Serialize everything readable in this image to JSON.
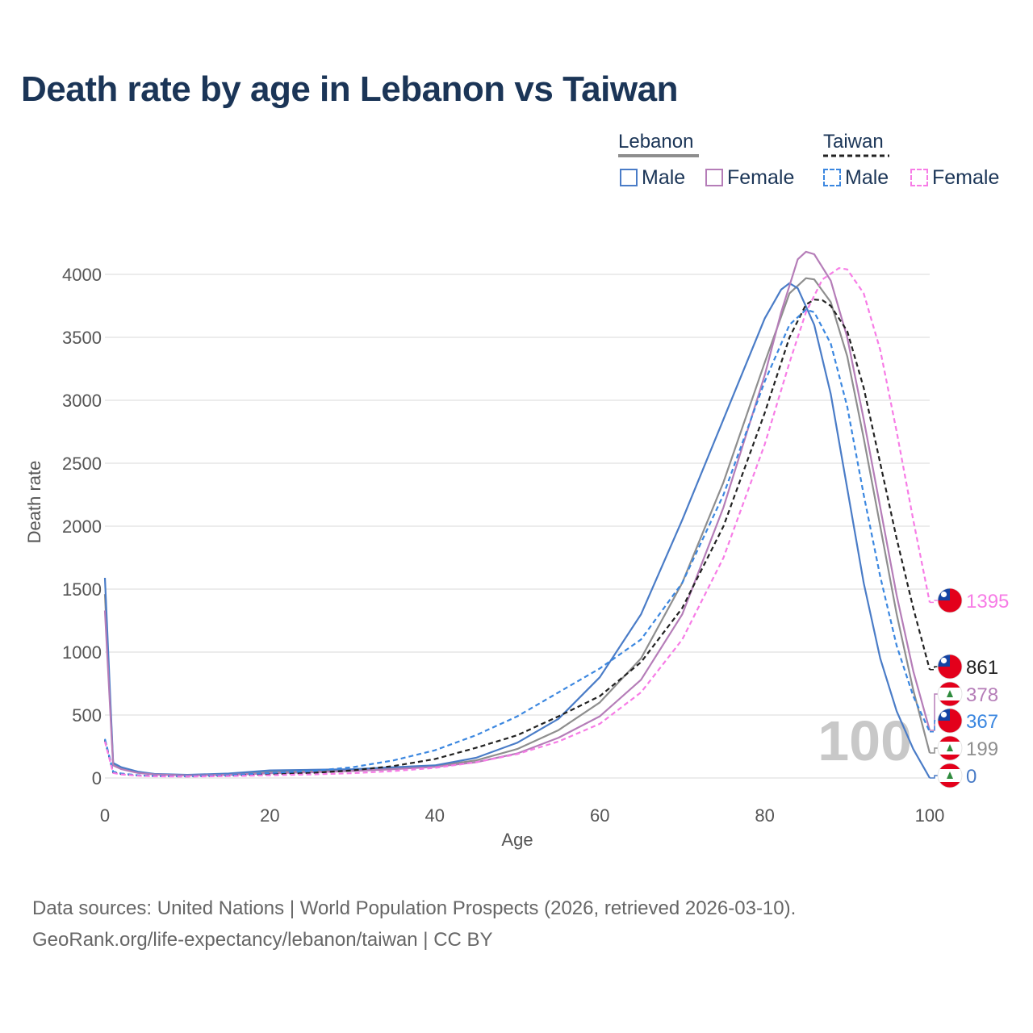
{
  "title": "Death rate by age in Lebanon vs Taiwan",
  "legend": {
    "groups": [
      {
        "label": "Lebanon",
        "line_color": "#8e8e8e",
        "dash": false,
        "items": [
          {
            "label": "Male",
            "color": "#4a7cc7"
          },
          {
            "label": "Female",
            "color": "#b57db8"
          }
        ]
      },
      {
        "label": "Taiwan",
        "line_color": "#222222",
        "dash": true,
        "items": [
          {
            "label": "Male",
            "color": "#3b87e0"
          },
          {
            "label": "Female",
            "color": "#f77ce6"
          }
        ]
      }
    ]
  },
  "chart_data": {
    "type": "line",
    "xlabel": "Age",
    "ylabel": "Death rate",
    "xlim": [
      0,
      100
    ],
    "ylim": [
      0,
      4000
    ],
    "x_ticks": [
      0,
      20,
      40,
      60,
      80,
      100
    ],
    "y_ticks": [
      0,
      500,
      1000,
      1500,
      2000,
      2500,
      3000,
      3500,
      4000
    ],
    "watermark": "100",
    "series": [
      {
        "id": "lb-total",
        "name": "Lebanon",
        "color": "#8e8e8e",
        "dash": false,
        "end_label": "199",
        "flag": "lebanon",
        "points": [
          [
            0,
            1460
          ],
          [
            1,
            110
          ],
          [
            2,
            80
          ],
          [
            4,
            45
          ],
          [
            6,
            30
          ],
          [
            10,
            22
          ],
          [
            15,
            30
          ],
          [
            20,
            48
          ],
          [
            25,
            55
          ],
          [
            30,
            65
          ],
          [
            35,
            78
          ],
          [
            40,
            95
          ],
          [
            45,
            140
          ],
          [
            50,
            230
          ],
          [
            55,
            380
          ],
          [
            60,
            600
          ],
          [
            65,
            950
          ],
          [
            70,
            1550
          ],
          [
            75,
            2350
          ],
          [
            80,
            3300
          ],
          [
            83,
            3850
          ],
          [
            85,
            3970
          ],
          [
            86,
            3960
          ],
          [
            88,
            3780
          ],
          [
            90,
            3350
          ],
          [
            92,
            2700
          ],
          [
            94,
            2000
          ],
          [
            96,
            1300
          ],
          [
            98,
            700
          ],
          [
            100,
            199
          ]
        ]
      },
      {
        "id": "lb-male",
        "name": "Lebanon Male",
        "color": "#4a7cc7",
        "dash": false,
        "end_label": "0",
        "flag": "lebanon",
        "points": [
          [
            0,
            1590
          ],
          [
            1,
            120
          ],
          [
            2,
            85
          ],
          [
            4,
            50
          ],
          [
            6,
            32
          ],
          [
            10,
            25
          ],
          [
            15,
            35
          ],
          [
            20,
            60
          ],
          [
            25,
            65
          ],
          [
            30,
            70
          ],
          [
            35,
            85
          ],
          [
            40,
            100
          ],
          [
            45,
            160
          ],
          [
            50,
            280
          ],
          [
            55,
            470
          ],
          [
            60,
            800
          ],
          [
            65,
            1300
          ],
          [
            70,
            2050
          ],
          [
            75,
            2850
          ],
          [
            80,
            3650
          ],
          [
            82,
            3880
          ],
          [
            83,
            3930
          ],
          [
            84,
            3890
          ],
          [
            86,
            3600
          ],
          [
            88,
            3050
          ],
          [
            90,
            2300
          ],
          [
            92,
            1550
          ],
          [
            94,
            950
          ],
          [
            96,
            530
          ],
          [
            98,
            230
          ],
          [
            100,
            0
          ]
        ]
      },
      {
        "id": "lb-female",
        "name": "Lebanon Female",
        "color": "#b57db8",
        "dash": false,
        "end_label": "378",
        "flag": "lebanon",
        "points": [
          [
            0,
            1330
          ],
          [
            1,
            100
          ],
          [
            2,
            70
          ],
          [
            4,
            40
          ],
          [
            6,
            28
          ],
          [
            10,
            20
          ],
          [
            15,
            25
          ],
          [
            20,
            38
          ],
          [
            25,
            45
          ],
          [
            30,
            55
          ],
          [
            35,
            70
          ],
          [
            40,
            88
          ],
          [
            45,
            125
          ],
          [
            50,
            195
          ],
          [
            55,
            320
          ],
          [
            60,
            490
          ],
          [
            65,
            780
          ],
          [
            70,
            1300
          ],
          [
            75,
            2150
          ],
          [
            80,
            3200
          ],
          [
            82,
            3700
          ],
          [
            84,
            4120
          ],
          [
            85,
            4180
          ],
          [
            86,
            4160
          ],
          [
            88,
            3950
          ],
          [
            90,
            3500
          ],
          [
            92,
            2850
          ],
          [
            94,
            2150
          ],
          [
            96,
            1450
          ],
          [
            98,
            850
          ],
          [
            100,
            378
          ]
        ]
      },
      {
        "id": "tw-total",
        "name": "Taiwan",
        "color": "#222222",
        "dash": true,
        "end_label": "861",
        "flag": "taiwan",
        "points": [
          [
            0,
            300
          ],
          [
            1,
            45
          ],
          [
            2,
            30
          ],
          [
            4,
            20
          ],
          [
            6,
            15
          ],
          [
            10,
            12
          ],
          [
            15,
            18
          ],
          [
            20,
            30
          ],
          [
            25,
            40
          ],
          [
            30,
            60
          ],
          [
            35,
            95
          ],
          [
            40,
            150
          ],
          [
            45,
            240
          ],
          [
            50,
            340
          ],
          [
            55,
            490
          ],
          [
            60,
            650
          ],
          [
            65,
            920
          ],
          [
            70,
            1350
          ],
          [
            75,
            2000
          ],
          [
            80,
            2900
          ],
          [
            83,
            3500
          ],
          [
            85,
            3760
          ],
          [
            86,
            3800
          ],
          [
            87,
            3795
          ],
          [
            88,
            3750
          ],
          [
            90,
            3550
          ],
          [
            92,
            3100
          ],
          [
            94,
            2500
          ],
          [
            96,
            1900
          ],
          [
            98,
            1350
          ],
          [
            100,
            861
          ]
        ]
      },
      {
        "id": "tw-male",
        "name": "Taiwan Male",
        "color": "#3b87e0",
        "dash": true,
        "end_label": "367",
        "flag": "taiwan",
        "points": [
          [
            0,
            310
          ],
          [
            1,
            50
          ],
          [
            2,
            35
          ],
          [
            4,
            22
          ],
          [
            6,
            16
          ],
          [
            10,
            14
          ],
          [
            15,
            22
          ],
          [
            20,
            40
          ],
          [
            25,
            55
          ],
          [
            30,
            85
          ],
          [
            35,
            140
          ],
          [
            40,
            220
          ],
          [
            45,
            340
          ],
          [
            50,
            490
          ],
          [
            55,
            680
          ],
          [
            60,
            870
          ],
          [
            65,
            1100
          ],
          [
            70,
            1550
          ],
          [
            75,
            2250
          ],
          [
            80,
            3150
          ],
          [
            83,
            3600
          ],
          [
            85,
            3720
          ],
          [
            86,
            3700
          ],
          [
            88,
            3450
          ],
          [
            90,
            2950
          ],
          [
            92,
            2250
          ],
          [
            94,
            1600
          ],
          [
            96,
            1050
          ],
          [
            98,
            650
          ],
          [
            100,
            367
          ]
        ]
      },
      {
        "id": "tw-female",
        "name": "Taiwan Female",
        "color": "#f77ce6",
        "dash": true,
        "end_label": "1395",
        "flag": "taiwan",
        "points": [
          [
            0,
            290
          ],
          [
            1,
            40
          ],
          [
            2,
            28
          ],
          [
            4,
            18
          ],
          [
            6,
            13
          ],
          [
            10,
            11
          ],
          [
            15,
            15
          ],
          [
            20,
            22
          ],
          [
            25,
            28
          ],
          [
            30,
            38
          ],
          [
            35,
            55
          ],
          [
            40,
            80
          ],
          [
            45,
            125
          ],
          [
            50,
            190
          ],
          [
            55,
            290
          ],
          [
            60,
            430
          ],
          [
            65,
            680
          ],
          [
            70,
            1100
          ],
          [
            75,
            1750
          ],
          [
            80,
            2650
          ],
          [
            83,
            3300
          ],
          [
            85,
            3700
          ],
          [
            87,
            3960
          ],
          [
            89,
            4050
          ],
          [
            90,
            4040
          ],
          [
            92,
            3850
          ],
          [
            94,
            3400
          ],
          [
            96,
            2750
          ],
          [
            98,
            2050
          ],
          [
            100,
            1395
          ]
        ]
      }
    ],
    "end_labels_order": [
      "tw-female",
      "tw-total",
      "lb-female",
      "tw-male",
      "lb-total",
      "lb-male"
    ]
  },
  "footer": {
    "line1": "Data sources: United Nations | World Population Prospects (2026, retrieved 2026-03-10).",
    "line2": "GeoRank.org/life-expectancy/lebanon/taiwan | CC BY"
  }
}
